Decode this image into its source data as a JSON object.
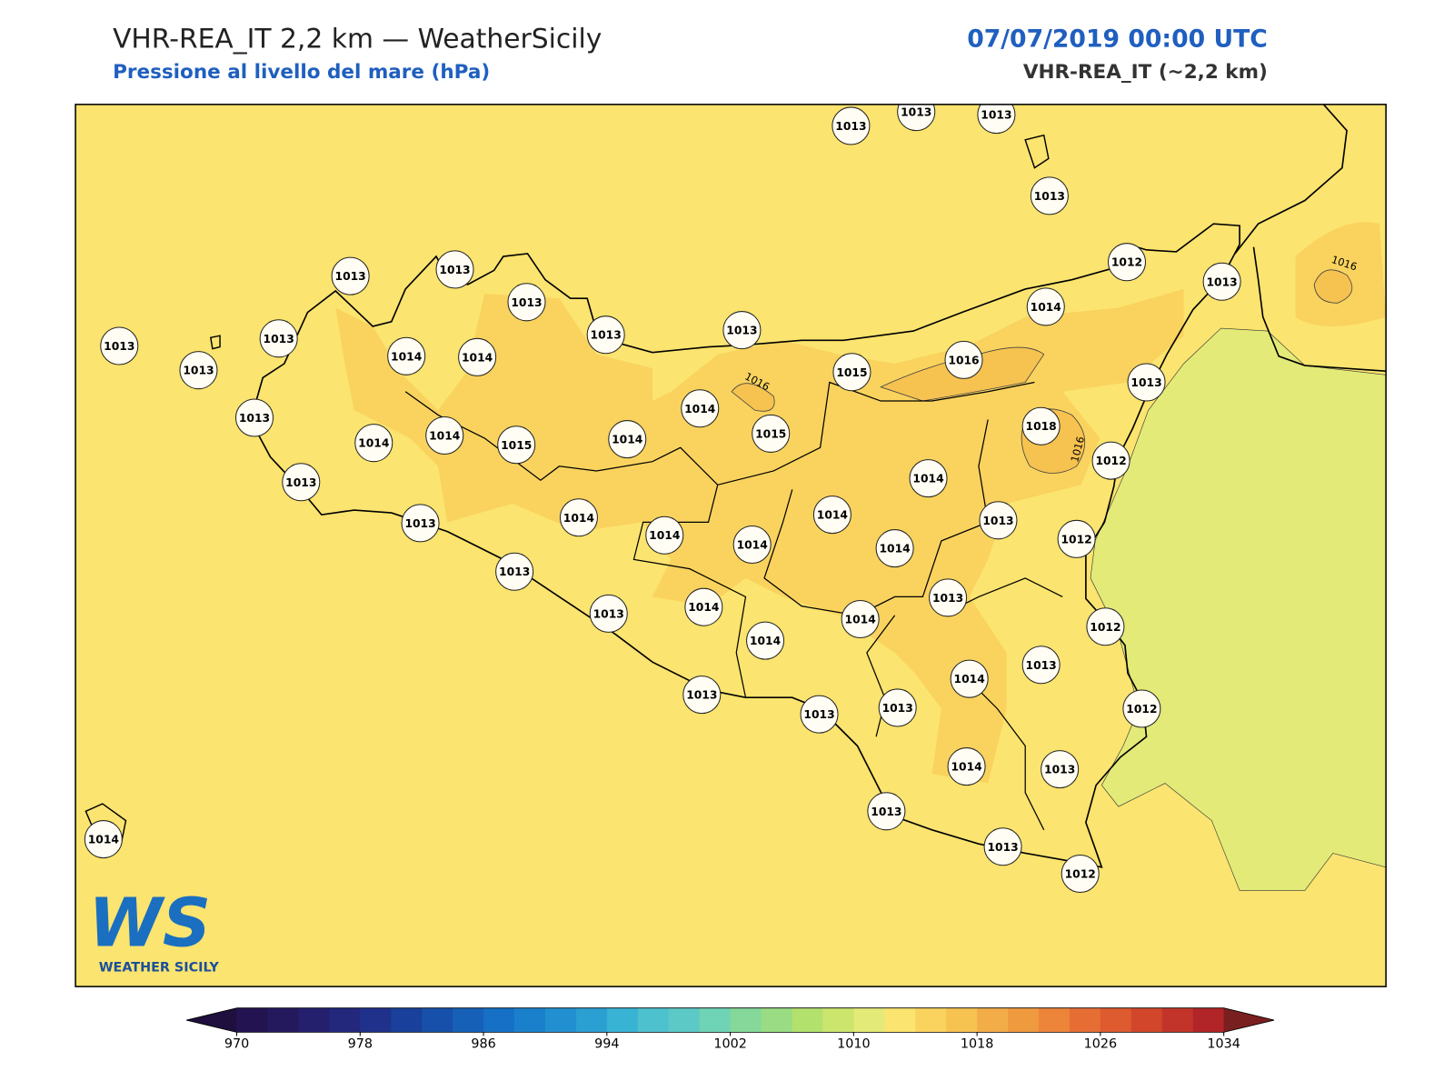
{
  "header": {
    "title": "VHR-REA_IT 2,2 km — WeatherSicily",
    "subtitle": "Pressione al livello del mare (hPa)",
    "datetime": "07/07/2019 00:00 UTC",
    "model": "VHR-REA_IT (~2,2 km)"
  },
  "map": {
    "stations": [
      1013,
      1013,
      1013,
      1013,
      1012,
      1013,
      1014,
      1013,
      1013,
      1013,
      1013,
      1013,
      1013,
      1013,
      1013,
      1014,
      1014,
      1015,
      1016,
      1013,
      1014,
      1013,
      1014,
      1014,
      1015,
      1014,
      1015,
      1018,
      1012,
      1013,
      1014,
      1013,
      1014,
      1014,
      1014,
      1014,
      1013,
      1012,
      1014,
      1013,
      1013,
      1013,
      1014,
      1014,
      1014,
      1012,
      1014,
      1013,
      1013,
      1013,
      1013,
      1012,
      1014,
      1013,
      1013,
      1014,
      1013,
      1012
    ],
    "contour_labels": [
      1016,
      1016,
      1016
    ]
  },
  "logo": {
    "mark": "WS",
    "name": "WEATHER SICILY"
  },
  "colorbar": {
    "lim": [
      970,
      1034
    ],
    "ticks": [
      970,
      978,
      986,
      994,
      1002,
      1010,
      1018,
      1026,
      1034
    ],
    "colors": [
      "#231451",
      "#25195e",
      "#24206e",
      "#23287d",
      "#1f318a",
      "#19409a",
      "#1750aa",
      "#1660b8",
      "#1570c6",
      "#1a80cc",
      "#2290d0",
      "#2a9fd2",
      "#38b3d3",
      "#4ec1cf",
      "#5cc9c6",
      "#6fd3b5",
      "#85d89a",
      "#99dc84",
      "#b3e16e",
      "#cbe56d",
      "#e3ea77",
      "#fbe46f",
      "#f9d35e",
      "#f6c250",
      "#f3ad48",
      "#f09a3f",
      "#ec843a",
      "#e66d34",
      "#de5a2f",
      "#d2462b",
      "#c2342a",
      "#b12427"
    ],
    "extend_colors": [
      "#1e0f3e",
      "#7a1f1f"
    ]
  }
}
